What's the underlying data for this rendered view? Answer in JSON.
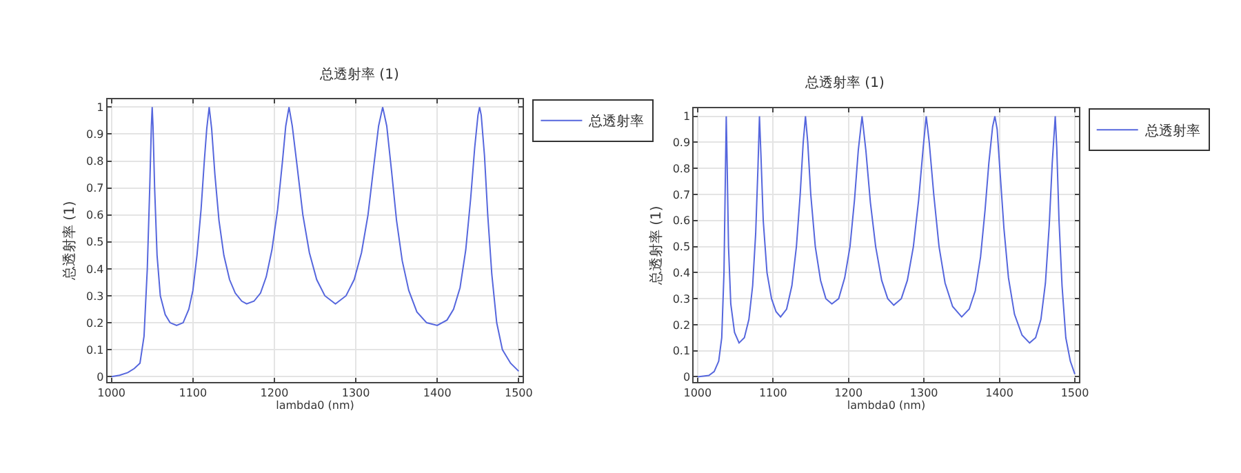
{
  "chart_data": [
    {
      "type": "line",
      "title": "总透射率 (1)",
      "xlabel": "lambda0 (nm)",
      "ylabel": "总透射率 (1)",
      "legend": "top right",
      "grid": true,
      "marker": "none",
      "line_style": "solid",
      "xlim": [
        995,
        1505
      ],
      "xticks": [
        1000,
        1100,
        1200,
        1300,
        1400,
        1500
      ],
      "ylim": [
        -0.02,
        1.03
      ],
      "yticks": [
        0,
        0.1,
        0.2,
        0.3,
        0.4,
        0.5,
        0.6,
        0.7,
        0.8,
        0.9,
        1
      ],
      "series": [
        {
          "name": "总透射率",
          "color": "#5566dd",
          "x": [
            1000,
            1010,
            1020,
            1028,
            1035,
            1040,
            1044,
            1047,
            1049,
            1050,
            1051,
            1053,
            1056,
            1060,
            1066,
            1072,
            1080,
            1088,
            1095,
            1100,
            1105,
            1110,
            1114,
            1117,
            1120,
            1123,
            1127,
            1132,
            1138,
            1145,
            1152,
            1160,
            1166,
            1175,
            1183,
            1190,
            1197,
            1204,
            1210,
            1214,
            1218,
            1222,
            1228,
            1235,
            1243,
            1252,
            1262,
            1275,
            1288,
            1298,
            1307,
            1315,
            1322,
            1328,
            1333,
            1338,
            1344,
            1350,
            1357,
            1365,
            1375,
            1387,
            1400,
            1412,
            1420,
            1428,
            1435,
            1441,
            1446,
            1450,
            1452,
            1454,
            1458,
            1462,
            1467,
            1473,
            1480,
            1490,
            1500
          ],
          "values": [
            0,
            0.005,
            0.015,
            0.03,
            0.05,
            0.15,
            0.4,
            0.7,
            0.93,
            1.0,
            0.93,
            0.7,
            0.45,
            0.3,
            0.23,
            0.2,
            0.19,
            0.2,
            0.25,
            0.32,
            0.45,
            0.62,
            0.8,
            0.92,
            1.0,
            0.92,
            0.75,
            0.58,
            0.45,
            0.36,
            0.31,
            0.28,
            0.27,
            0.28,
            0.31,
            0.37,
            0.47,
            0.62,
            0.8,
            0.93,
            1.0,
            0.93,
            0.78,
            0.6,
            0.46,
            0.36,
            0.3,
            0.27,
            0.3,
            0.36,
            0.46,
            0.6,
            0.78,
            0.93,
            1.0,
            0.93,
            0.76,
            0.58,
            0.43,
            0.32,
            0.24,
            0.2,
            0.19,
            0.21,
            0.25,
            0.33,
            0.47,
            0.66,
            0.85,
            0.97,
            1.0,
            0.97,
            0.82,
            0.6,
            0.38,
            0.2,
            0.1,
            0.05,
            0.02
          ]
        }
      ]
    },
    {
      "type": "line",
      "title": "总透射率 (1)",
      "xlabel": "lambda0 (nm)",
      "ylabel": "总透射率 (1)",
      "legend": "top right",
      "grid": true,
      "marker": "none",
      "line_style": "solid",
      "xlim": [
        995,
        1505
      ],
      "xticks": [
        1000,
        1100,
        1200,
        1300,
        1400,
        1500
      ],
      "ylim": [
        -0.02,
        1.03
      ],
      "yticks": [
        0,
        0.1,
        0.2,
        0.3,
        0.4,
        0.5,
        0.6,
        0.7,
        0.8,
        0.9,
        1
      ],
      "series": [
        {
          "name": "总透射率",
          "color": "#5566dd",
          "x": [
            1000,
            1015,
            1022,
            1028,
            1032,
            1035,
            1037,
            1038,
            1039,
            1041,
            1044,
            1049,
            1055,
            1062,
            1068,
            1073,
            1077,
            1080,
            1082,
            1084,
            1087,
            1092,
            1098,
            1104,
            1110,
            1118,
            1125,
            1131,
            1136,
            1140,
            1143,
            1146,
            1150,
            1156,
            1163,
            1170,
            1178,
            1187,
            1195,
            1202,
            1208,
            1213,
            1218,
            1223,
            1229,
            1236,
            1244,
            1252,
            1260,
            1270,
            1278,
            1286,
            1293,
            1299,
            1303,
            1307,
            1313,
            1320,
            1328,
            1338,
            1350,
            1360,
            1368,
            1375,
            1381,
            1386,
            1391,
            1394,
            1397,
            1401,
            1406,
            1412,
            1420,
            1430,
            1440,
            1448,
            1455,
            1461,
            1466,
            1470,
            1474,
            1476,
            1479,
            1483,
            1488,
            1494,
            1500
          ],
          "values": [
            0,
            0.005,
            0.02,
            0.06,
            0.15,
            0.4,
            0.8,
            1.0,
            0.85,
            0.5,
            0.28,
            0.17,
            0.13,
            0.15,
            0.22,
            0.35,
            0.55,
            0.8,
            1.0,
            0.85,
            0.6,
            0.4,
            0.3,
            0.25,
            0.23,
            0.26,
            0.35,
            0.5,
            0.7,
            0.9,
            1.0,
            0.9,
            0.7,
            0.5,
            0.37,
            0.3,
            0.28,
            0.3,
            0.38,
            0.5,
            0.68,
            0.87,
            1.0,
            0.87,
            0.67,
            0.5,
            0.37,
            0.3,
            0.275,
            0.3,
            0.37,
            0.5,
            0.68,
            0.88,
            1.0,
            0.9,
            0.7,
            0.5,
            0.36,
            0.27,
            0.23,
            0.26,
            0.33,
            0.46,
            0.64,
            0.82,
            0.96,
            1.0,
            0.95,
            0.78,
            0.57,
            0.38,
            0.24,
            0.16,
            0.13,
            0.15,
            0.22,
            0.36,
            0.58,
            0.82,
            1.0,
            0.88,
            0.6,
            0.35,
            0.15,
            0.06,
            0.01
          ]
        }
      ]
    }
  ]
}
